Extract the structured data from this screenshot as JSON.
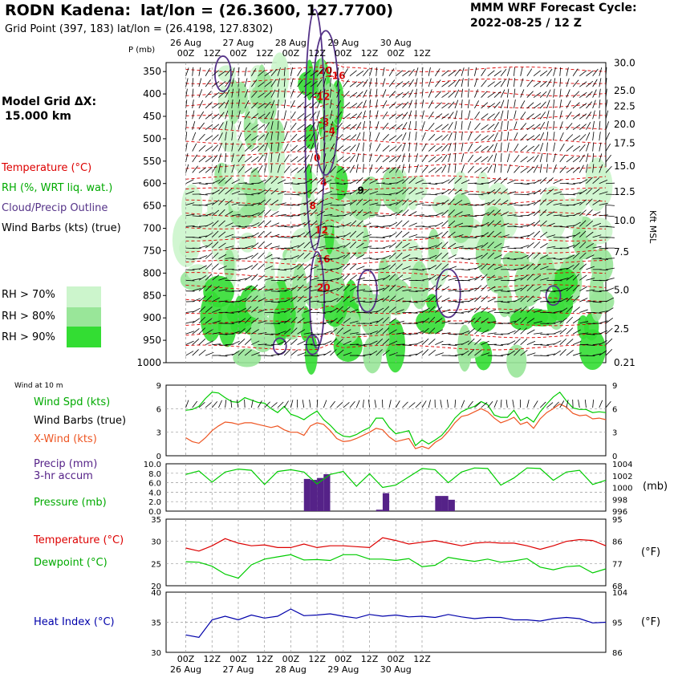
{
  "header": {
    "station": "RODN Kadena:",
    "latlon": "lat/lon = (26.3600, 127.7700)",
    "grid": "Grid Point (397, 183) lat/lon = (26.4198, 127.8302)",
    "cycle_title": "MMM WRF Forecast Cycle:",
    "cycle": "2022-08-25 / 12  Z"
  },
  "side": {
    "model_grid": "Model Grid ΔX:",
    "model_dx": "15.000 km",
    "temperature": "Temperature (°C)",
    "rh": "RH (%, WRT liq. wat.)",
    "cloud": "Cloud/Precip Outline",
    "barbs": "Wind Barbs (kts) (true)",
    "rh70": "RH > 70%",
    "rh80": "RH > 80%",
    "rh90": "RH > 90%"
  },
  "colors": {
    "rh70": "#ccf5cc",
    "rh80": "#99e699",
    "rh90": "#33dd33",
    "temp": "#dd0000",
    "cloud": "#553388",
    "wind_spd": "#00cc00",
    "xwind": "#ee5522",
    "precip": "#552288",
    "dew": "#00cc00",
    "heat": "#0000aa"
  },
  "axes": {
    "p_label": "P  (mb)",
    "kft_label": "Kft MSL",
    "time_ticks": [
      "00Z",
      "12Z",
      "00Z",
      "12Z",
      "00Z",
      "12Z",
      "00Z",
      "12Z",
      "00Z",
      "12Z"
    ],
    "dates": [
      "26 Aug",
      "27 Aug",
      "28 Aug",
      "29 Aug",
      "30 Aug"
    ],
    "pressure_levels": [
      "350",
      "400",
      "450",
      "500",
      "550",
      "600",
      "650",
      "700",
      "750",
      "800",
      "850",
      "900",
      "950",
      "1000"
    ],
    "kft_ticks": [
      "30.0",
      "25.0",
      "22.5",
      "20.0",
      "17.5",
      "15.0",
      "12.5",
      "10.0",
      "7.5",
      "5.0",
      "2.5",
      "0.21"
    ]
  },
  "chart_data": [
    {
      "type": "heatmap",
      "x_ticks": [
        "00Z",
        "12Z",
        "00Z",
        "12Z",
        "00Z",
        "12Z",
        "00Z",
        "12Z",
        "00Z",
        "12Z"
      ],
      "y_ticks": [
        "350",
        "400",
        "450",
        "500",
        "550",
        "600",
        "650",
        "700",
        "750",
        "800",
        "850",
        "900",
        "950",
        "1000"
      ],
      "y_ticks_right": [
        "30.0",
        "25.0",
        "22.5",
        "20.0",
        "17.5",
        "15.0",
        "12.5",
        "10.0",
        "7.5",
        "5.0",
        "2.5",
        "0.21"
      ],
      "ylabel": "P  (mb)",
      "ylabel_right": "Kft MSL",
      "temperature_labels": [
        {
          "value": "-20",
          "time_h": 63,
          "p": 355
        },
        {
          "value": "-16",
          "time_h": 69,
          "p": 367
        },
        {
          "value": "-12",
          "time_h": 62,
          "p": 413
        },
        {
          "value": "-8",
          "time_h": 63,
          "p": 470
        },
        {
          "value": "-4",
          "time_h": 66,
          "p": 490
        },
        {
          "value": "0",
          "time_h": 60,
          "p": 550
        },
        {
          "value": "4",
          "time_h": 63,
          "p": 605
        },
        {
          "value": "9",
          "time_h": 80,
          "p": 623
        },
        {
          "value": "8",
          "time_h": 58,
          "p": 657
        },
        {
          "value": "12",
          "time_h": 62,
          "p": 712
        },
        {
          "value": "16",
          "time_h": 63,
          "p": 776
        },
        {
          "value": "20",
          "time_h": 63,
          "p": 840
        }
      ]
    },
    {
      "type": "line",
      "title": "Wind at 10 m",
      "ylim": [
        0,
        9
      ],
      "y_ticks": [
        "9",
        "6",
        "3",
        "0"
      ],
      "series": [
        {
          "name": "Wind Spd (kts)",
          "x": [
            0,
            3,
            6,
            9,
            12,
            15,
            18,
            21,
            24,
            27,
            30,
            33,
            36,
            39,
            42,
            45,
            48,
            51,
            54,
            57,
            60,
            63,
            66,
            69,
            72,
            75,
            78,
            81,
            84,
            87,
            90,
            93,
            96,
            99,
            102,
            105,
            108,
            111,
            114,
            117,
            120,
            123,
            126,
            129,
            132,
            135,
            138,
            141,
            144,
            147,
            150,
            153,
            156,
            159,
            162,
            165,
            168,
            171,
            174,
            177,
            180,
            183,
            186,
            189,
            192
          ],
          "values": [
            5.8,
            5.9,
            6.3,
            7.3,
            8.1,
            8.0,
            7.4,
            6.9,
            6.8,
            7.4,
            7.1,
            6.8,
            6.7,
            6.0,
            5.5,
            6.3,
            5.3,
            5.0,
            4.6,
            5.2,
            5.7,
            4.6,
            3.9,
            3.0,
            2.5,
            2.4,
            2.7,
            3.2,
            3.6,
            4.8,
            4.8,
            3.6,
            2.8,
            3.0,
            3.2,
            1.3,
            2.0,
            1.5,
            2.0,
            2.6,
            3.6,
            4.8,
            5.6,
            6.0,
            6.3,
            6.9,
            6.5,
            5.2,
            4.9,
            4.9,
            5.8,
            4.5,
            4.9,
            4.3,
            5.6,
            6.6,
            7.5,
            8.1,
            7.0,
            6.1,
            5.9,
            5.9,
            5.5,
            5.6,
            5.5
          ]
        },
        {
          "name": "X-Wind (kts)",
          "x": [
            0,
            3,
            6,
            9,
            12,
            15,
            18,
            21,
            24,
            27,
            30,
            33,
            36,
            39,
            42,
            45,
            48,
            51,
            54,
            57,
            60,
            63,
            66,
            69,
            72,
            75,
            78,
            81,
            84,
            87,
            90,
            93,
            96,
            99,
            102,
            105,
            108,
            111,
            114,
            117,
            120,
            123,
            126,
            129,
            132,
            135,
            138,
            141,
            144,
            147,
            150,
            153,
            156,
            159,
            162,
            165,
            168,
            171,
            174,
            177,
            180,
            183,
            186,
            189,
            192
          ],
          "values": [
            2.3,
            1.8,
            1.6,
            2.3,
            3.2,
            3.8,
            4.3,
            4.2,
            4.0,
            4.2,
            4.2,
            4.0,
            3.8,
            3.6,
            3.8,
            3.3,
            3.0,
            3.0,
            2.6,
            3.8,
            4.2,
            4.0,
            3.2,
            2.2,
            1.8,
            1.9,
            2.2,
            2.6,
            3.0,
            3.5,
            3.3,
            2.4,
            1.8,
            2.0,
            2.2,
            0.9,
            1.2,
            0.9,
            1.7,
            2.2,
            3.1,
            4.2,
            5.0,
            5.2,
            5.6,
            6.0,
            5.6,
            4.8,
            4.2,
            4.5,
            4.9,
            4.0,
            4.3,
            3.5,
            4.7,
            5.5,
            6.0,
            6.6,
            6.2,
            5.4,
            5.1,
            5.2,
            4.7,
            4.8,
            4.6
          ]
        }
      ]
    },
    {
      "type": "bar",
      "ylim": [
        0,
        10
      ],
      "y_ticks": [
        "10.0",
        "8.0",
        "6.0",
        "4.0",
        "2.0",
        "0.0"
      ],
      "y_ticks_right": [
        "1004",
        "1002",
        "1000",
        "998",
        "996"
      ],
      "ylabel_right": "(mb)",
      "precip_bars": [
        {
          "time_h": 57,
          "value": 6.8
        },
        {
          "time_h": 60,
          "value": 6.6
        },
        {
          "time_h": 63,
          "value": 7.0
        },
        {
          "time_h": 66,
          "value": 7.8
        },
        {
          "time_h": 90,
          "value": 0.3
        },
        {
          "time_h": 93,
          "value": 3.8
        },
        {
          "time_h": 117,
          "value": 3.2
        },
        {
          "time_h": 120,
          "value": 3.2
        },
        {
          "time_h": 123,
          "value": 2.4
        }
      ],
      "pressure_series": {
        "name": "Pressure (mb)",
        "x": [
          0,
          6,
          12,
          18,
          24,
          30,
          36,
          42,
          48,
          54,
          60,
          66,
          72,
          78,
          84,
          90,
          96,
          102,
          108,
          114,
          120,
          126,
          132,
          138,
          144,
          150,
          156,
          162,
          168,
          174,
          180,
          186,
          192
        ],
        "values": [
          1002.2,
          1002.8,
          1000.9,
          1002.6,
          1003.1,
          1002.9,
          1000.5,
          1002.7,
          1003.0,
          1002.6,
          1000.6,
          1002.2,
          1002.7,
          1000.2,
          1002.3,
          1000.0,
          1000.4,
          1001.8,
          1003.2,
          1003.0,
          1000.8,
          1002.6,
          1003.3,
          1003.2,
          1000.4,
          1001.6,
          1003.3,
          1003.2,
          1001.2,
          1002.6,
          1002.9,
          1000.5,
          1001.2
        ]
      }
    },
    {
      "type": "line",
      "ylim": [
        20,
        35
      ],
      "y_ticks": [
        "35",
        "30",
        "25",
        "20"
      ],
      "y_ticks_right": [
        "95",
        "86",
        "77",
        "68"
      ],
      "ylabel_right": "(°F)",
      "series": [
        {
          "name": "Temperature (°C)",
          "x": [
            0,
            6,
            12,
            18,
            24,
            30,
            36,
            42,
            48,
            54,
            60,
            66,
            72,
            78,
            84,
            90,
            96,
            102,
            108,
            114,
            120,
            126,
            132,
            138,
            144,
            150,
            156,
            162,
            168,
            174,
            180,
            186,
            192
          ],
          "values": [
            28.5,
            27.8,
            29.0,
            30.6,
            29.6,
            29.0,
            29.2,
            28.6,
            28.6,
            29.4,
            28.6,
            29.0,
            29.0,
            28.8,
            28.6,
            30.8,
            30.2,
            29.4,
            29.8,
            30.2,
            29.6,
            29.0,
            29.6,
            29.8,
            29.6,
            29.6,
            29.0,
            28.2,
            29.0,
            30.0,
            30.4,
            30.2,
            29.0
          ]
        },
        {
          "name": "Dewpoint (°C)",
          "x": [
            0,
            6,
            12,
            18,
            24,
            30,
            36,
            42,
            48,
            54,
            60,
            66,
            72,
            78,
            84,
            90,
            96,
            102,
            108,
            114,
            120,
            126,
            132,
            138,
            144,
            150,
            156,
            162,
            168,
            174,
            180,
            186,
            192
          ],
          "values": [
            25.4,
            25.3,
            24.4,
            22.6,
            21.7,
            24.7,
            26.0,
            26.5,
            27.0,
            25.8,
            25.9,
            25.7,
            27.0,
            27.0,
            26.0,
            26.0,
            25.7,
            26.1,
            24.3,
            24.6,
            26.4,
            25.9,
            25.5,
            26.0,
            25.3,
            25.6,
            26.1,
            24.2,
            23.6,
            24.3,
            24.5,
            22.9,
            23.8
          ]
        }
      ]
    },
    {
      "type": "line",
      "ylim": [
        30,
        40
      ],
      "y_ticks": [
        "40",
        "35",
        "30"
      ],
      "y_ticks_right": [
        "104",
        "95",
        "86"
      ],
      "ylabel_right": "(°F)",
      "series": [
        {
          "name": "Heat Index (°C)",
          "x": [
            0,
            6,
            12,
            18,
            24,
            30,
            36,
            42,
            48,
            54,
            60,
            66,
            72,
            78,
            84,
            90,
            96,
            102,
            108,
            114,
            120,
            126,
            132,
            138,
            144,
            150,
            156,
            162,
            168,
            174,
            180,
            186,
            192
          ],
          "values": [
            32.9,
            32.5,
            35.4,
            36.0,
            35.4,
            36.2,
            35.7,
            36.0,
            37.2,
            36.1,
            36.2,
            36.4,
            36.0,
            35.7,
            36.3,
            36.0,
            36.2,
            35.9,
            36.0,
            35.8,
            36.3,
            35.9,
            35.6,
            35.8,
            35.8,
            35.4,
            35.4,
            35.2,
            35.6,
            35.8,
            35.6,
            34.9,
            35.0
          ]
        }
      ]
    }
  ],
  "panels": {
    "wind_title": "Wind at 10 m",
    "wind_spd": "Wind Spd (kts)",
    "wind_barbs": "Wind Barbs (true)",
    "xwind": "X-Wind (kts)",
    "precip": "Precip (mm)",
    "precip_accum": "3-hr accum",
    "pressure": "Pressure (mb)",
    "pressure_unit": "(mb)",
    "temperature": "Temperature (°C)",
    "dewpoint": "Dewpoint (°C)",
    "fahrenheit": "(°F)",
    "heat_index": "Heat Index (°C)",
    "fahrenheit2": "(°F)"
  }
}
